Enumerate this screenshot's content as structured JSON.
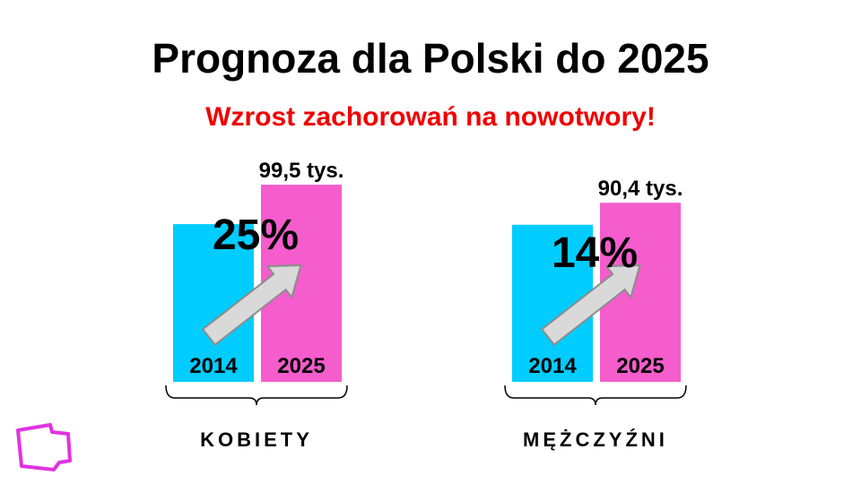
{
  "title": "Prognoza dla Polski do 2025",
  "subtitle": "Wzrost zachorowań na nowotwory!",
  "colors": {
    "bar_2014": "#00ccff",
    "bar_2025": "#f55ccc",
    "subtitle": "#f00000",
    "arrow_fill": "#d9d9d9",
    "arrow_stroke": "#8c8c8c",
    "logo": "#e033e0"
  },
  "chart_data": {
    "type": "bar",
    "categories": [
      "2014",
      "2025"
    ],
    "groups": [
      {
        "label": "KOBIETY",
        "values": [
          79.6,
          99.5
        ],
        "value_label_2025": "99,5 tys.",
        "change_label": "25%"
      },
      {
        "label": "MĘŻCZYŹNI",
        "values": [
          79.3,
          90.4
        ],
        "value_label_2025": "90,4 tys.",
        "change_label": "14%"
      }
    ],
    "unit": "tys.",
    "ylim": [
      0,
      100
    ],
    "grid": false,
    "legend": "none"
  },
  "logo": {
    "icon": "pl-outline-logo-icon"
  }
}
